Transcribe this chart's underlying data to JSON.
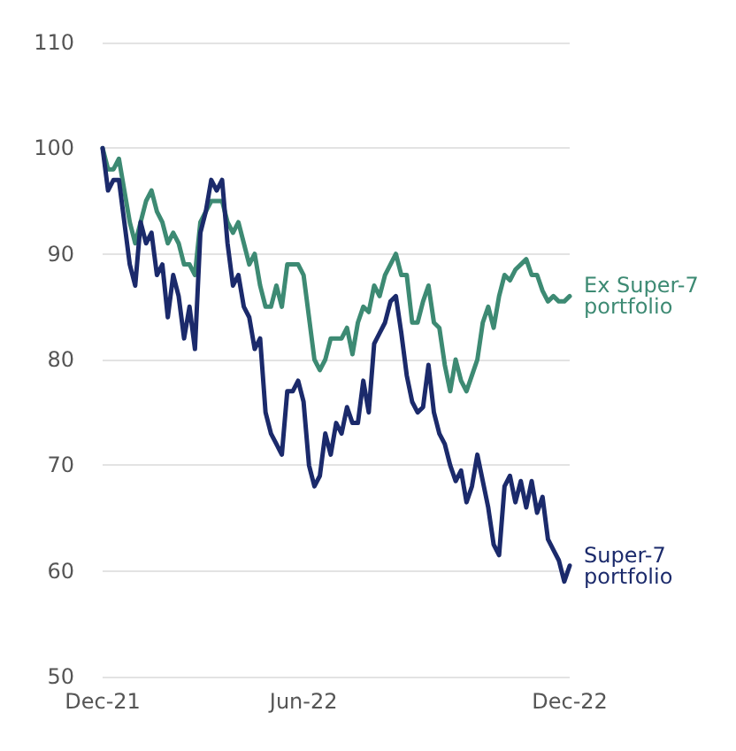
{
  "chart_data": {
    "type": "line",
    "categories": [
      "Dec-21",
      null,
      null,
      null,
      null,
      null,
      null,
      null,
      null,
      null,
      null,
      null,
      null,
      null,
      null,
      null,
      null,
      null,
      null,
      null,
      null,
      null,
      null,
      null,
      null,
      null,
      null,
      null,
      null,
      null,
      null,
      null,
      null,
      null,
      null,
      null,
      null,
      "Jun-22",
      null,
      null,
      null,
      null,
      null,
      null,
      null,
      null,
      null,
      null,
      null,
      null,
      null,
      null,
      null,
      null,
      null,
      null,
      null,
      null,
      null,
      null,
      null,
      null,
      null,
      null,
      null,
      null,
      null,
      null,
      null,
      null,
      null,
      null,
      null,
      null,
      null,
      null,
      null,
      null,
      null,
      null,
      null,
      null,
      null,
      null,
      null,
      null,
      "Dec-22"
    ],
    "series": [
      {
        "name": "Ex Super-7 portfolio",
        "color": "#3d8a73",
        "values": [
          100,
          98,
          98,
          99,
          96,
          93,
          91,
          93,
          95,
          96,
          94,
          93,
          91,
          92,
          91,
          89,
          89,
          88,
          93,
          94,
          95,
          95,
          95,
          93,
          92,
          93,
          91,
          89,
          90,
          87,
          85,
          85,
          87,
          85,
          89,
          89,
          89,
          88,
          84,
          80,
          79,
          80,
          82,
          82,
          82,
          83,
          80.5,
          83.5,
          85,
          84.5,
          87,
          86,
          88,
          89,
          90,
          88,
          88,
          83.5,
          83.5,
          85.5,
          87,
          83.5,
          83,
          79.5,
          77,
          80,
          78,
          77,
          78.5,
          80,
          83.5,
          85,
          83,
          86,
          88,
          87.5,
          88.5,
          89,
          89.5,
          88,
          88,
          86.5,
          85.5,
          86,
          85.5,
          85.5,
          86
        ]
      },
      {
        "name": "Super-7 portfolio",
        "color": "#1b2a6b",
        "values": [
          100,
          96,
          97,
          97,
          93,
          89,
          87,
          93,
          91,
          92,
          88,
          89,
          84,
          88,
          86,
          82,
          85,
          81,
          92,
          94,
          97,
          96,
          97,
          91,
          87,
          88,
          85,
          84,
          81,
          82,
          75,
          73,
          72,
          71,
          77,
          77,
          78,
          76,
          70,
          68,
          69,
          73,
          71,
          74,
          73,
          75.5,
          74,
          74,
          78,
          75,
          81.5,
          82.5,
          83.5,
          85.5,
          86,
          82.5,
          78.5,
          76,
          75,
          75.5,
          79.5,
          75,
          73,
          72,
          70,
          68.5,
          69.5,
          66.5,
          68,
          71,
          68.5,
          66,
          62.5,
          61.5,
          68,
          69,
          66.5,
          68.5,
          66,
          68.5,
          65.5,
          67,
          63,
          62,
          61,
          59,
          60.5
        ]
      }
    ],
    "ylim": [
      50,
      110
    ],
    "yticks": [
      50,
      60,
      70,
      80,
      90,
      100,
      110
    ],
    "grid": "y",
    "legend": false,
    "marker": "none",
    "line_style": "solid"
  }
}
